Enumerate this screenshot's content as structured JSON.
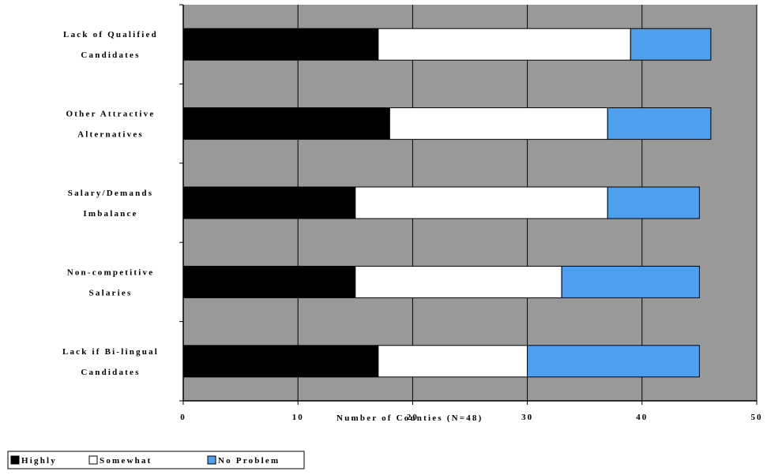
{
  "chart_data": {
    "type": "bar",
    "orientation": "horizontal",
    "stacked": true,
    "categories": [
      [
        "Lack of Qualified",
        "Candidates"
      ],
      [
        "Other Attractive",
        "Alternatives"
      ],
      [
        "Salary/Demands",
        "Imbalance"
      ],
      [
        "Non-competitive",
        "Salaries"
      ],
      [
        "Lack if Bi-lingual",
        "Candidates"
      ]
    ],
    "series": [
      {
        "name": "Highly",
        "color": "#000000",
        "values": [
          17,
          18,
          15,
          15,
          17
        ]
      },
      {
        "name": "Somewhat",
        "color": "#ffffff",
        "values": [
          22,
          19,
          22,
          18,
          13
        ]
      },
      {
        "name": "No Problem",
        "color": "#4f9fef",
        "values": [
          7,
          9,
          8,
          12,
          15
        ]
      }
    ],
    "xlabel": "Number of Counties (N=48)",
    "ylabel": "",
    "title": "",
    "xlim": [
      0,
      50
    ],
    "xticks": [
      0,
      10,
      20,
      30,
      40,
      50
    ],
    "xtick_labels": [
      "0",
      "10",
      "20",
      "30",
      "40",
      "50"
    ],
    "grid": true,
    "plot_background": "#999999",
    "legend_position": "bottom-left"
  }
}
